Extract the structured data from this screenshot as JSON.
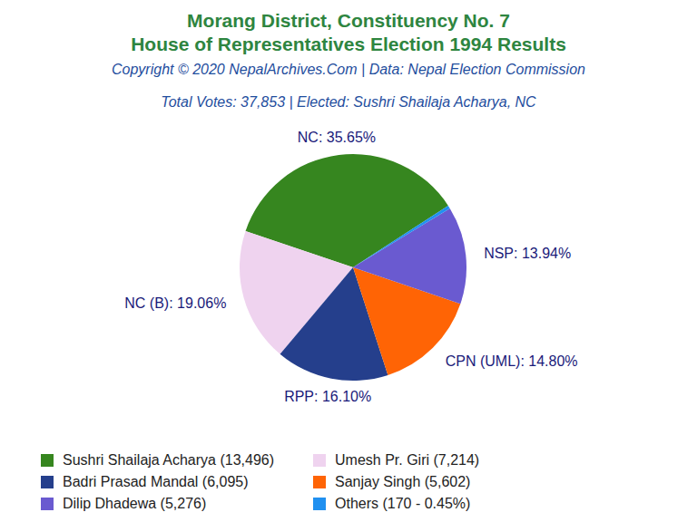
{
  "chart_data": {
    "type": "pie",
    "title": "Morang District, Constituency No. 7",
    "subtitle": "House of Representatives Election 1994 Results",
    "source": "Copyright © 2020 NepalArchives.Com | Data: Nepal Election Commission",
    "caption": "Total Votes: 37,853 | Elected: Sushri Shailaja Acharya, NC",
    "categories": [
      "NC",
      "NC (B)",
      "RPP",
      "CPN (UML)",
      "NSP",
      "Others"
    ],
    "values": [
      35.65,
      19.06,
      16.1,
      14.8,
      13.94,
      0.45
    ],
    "value_labels": [
      "NC: 35.65%",
      "NC (B): 19.06%",
      "RPP: 16.10%",
      "CPN (UML): 14.80%",
      "NSP: 13.94%",
      null
    ],
    "colors": [
      "#36861f",
      "#efd3ef",
      "#253f8c",
      "#ff6405",
      "#6a5ad0",
      "#2090f0"
    ],
    "legend": "bottom",
    "legend_labels": [
      "Sushri Shailaja Acharya (13,496)",
      "Umesh Pr. Giri (7,214)",
      "Badri Prasad Mandal (6,095)",
      "Sanjay Singh (5,602)",
      "Dilip Dhadewa (5,276)",
      "Others (170 - 0.45%)"
    ],
    "data_labels": true
  }
}
